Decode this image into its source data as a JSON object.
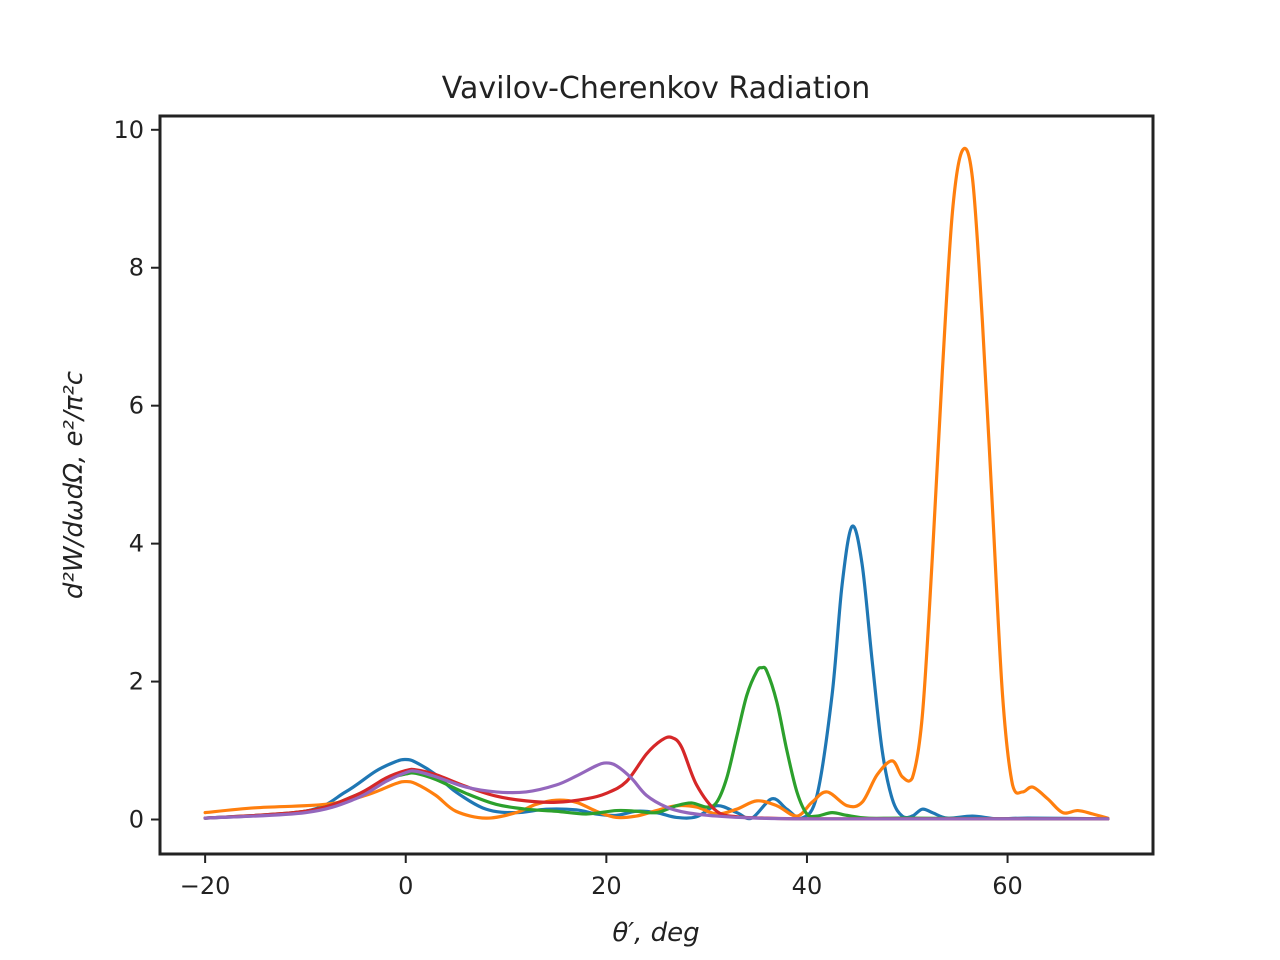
{
  "chart_data": {
    "type": "line",
    "title": "Vavilov-Cherenkov Radiation",
    "xlabel": "θ′, deg",
    "ylabel": "d²W/dωdΩ, e²/π²c",
    "xlim": [
      -24.5,
      74.5
    ],
    "ylim": [
      -0.5,
      10.2
    ],
    "xticks": [
      -20,
      0,
      20,
      40,
      60
    ],
    "xtick_labels": [
      "−20",
      "0",
      "20",
      "40",
      "60"
    ],
    "yticks": [
      0,
      2,
      4,
      6,
      8,
      10
    ],
    "ytick_labels": [
      "0",
      "2",
      "4",
      "6",
      "8",
      "10"
    ],
    "grid": false,
    "legend": "none",
    "series": [
      {
        "color": "#1f77b4",
        "x": [
          -20,
          -10,
          -6,
          -3,
          -1,
          0,
          1,
          3,
          5,
          8,
          11,
          14,
          17,
          19,
          21,
          23,
          25,
          27,
          29,
          31,
          33,
          34.5,
          36.5,
          38,
          39.5,
          41,
          42.5,
          43.5,
          44.5,
          45.5,
          46.5,
          47.5,
          48.5,
          49.5,
          50.5,
          51.5,
          52.5,
          54,
          56.5,
          59,
          62,
          70
        ],
        "y": [
          0.02,
          0.12,
          0.4,
          0.7,
          0.84,
          0.87,
          0.83,
          0.65,
          0.4,
          0.15,
          0.1,
          0.15,
          0.14,
          0.08,
          0.06,
          0.12,
          0.1,
          0.03,
          0.04,
          0.2,
          0.1,
          0.02,
          0.3,
          0.15,
          0.02,
          0.35,
          1.8,
          3.4,
          4.25,
          3.7,
          2.3,
          1.0,
          0.3,
          0.05,
          0.05,
          0.15,
          0.1,
          0.02,
          0.05,
          0.01,
          0.02,
          0.01
        ]
      },
      {
        "color": "#ff7f0e",
        "x": [
          -20,
          -15,
          -8,
          -4,
          -1,
          0,
          1,
          3,
          5,
          8,
          11,
          13,
          15,
          17,
          19,
          21,
          23,
          25,
          27,
          29,
          31,
          33,
          35,
          37,
          39,
          40.5,
          42,
          44,
          45.5,
          47,
          48.5,
          49.5,
          50.5,
          51.5,
          52.5,
          53.5,
          54.5,
          55.5,
          56.5,
          57.5,
          58.5,
          59.5,
          60.5,
          61.5,
          62.5,
          64,
          65.5,
          67,
          68.5,
          70
        ],
        "y": [
          0.1,
          0.17,
          0.22,
          0.35,
          0.52,
          0.55,
          0.52,
          0.35,
          0.12,
          0.02,
          0.1,
          0.22,
          0.28,
          0.25,
          0.12,
          0.03,
          0.05,
          0.13,
          0.2,
          0.18,
          0.08,
          0.15,
          0.27,
          0.2,
          0.05,
          0.25,
          0.4,
          0.2,
          0.25,
          0.65,
          0.85,
          0.62,
          0.6,
          1.5,
          3.8,
          6.5,
          8.8,
          9.7,
          9.3,
          7.2,
          4.5,
          1.8,
          0.5,
          0.4,
          0.47,
          0.3,
          0.1,
          0.13,
          0.08,
          0.02
        ]
      },
      {
        "color": "#2ca02c",
        "x": [
          -20,
          -10,
          -5,
          -2,
          0,
          1,
          3,
          6,
          9,
          12,
          15,
          18,
          21,
          23,
          25,
          27,
          28.5,
          30,
          31,
          32,
          33,
          34,
          35,
          35.5,
          36,
          37,
          38,
          39,
          40,
          41,
          42.5,
          44,
          46,
          50,
          60,
          70
        ],
        "y": [
          0.02,
          0.12,
          0.35,
          0.58,
          0.66,
          0.67,
          0.58,
          0.38,
          0.22,
          0.15,
          0.12,
          0.08,
          0.13,
          0.12,
          0.1,
          0.2,
          0.24,
          0.18,
          0.25,
          0.6,
          1.2,
          1.8,
          2.15,
          2.2,
          2.15,
          1.7,
          1.0,
          0.4,
          0.08,
          0.05,
          0.1,
          0.06,
          0.02,
          0.02,
          0.01,
          0.01
        ]
      },
      {
        "color": "#d62728",
        "x": [
          -20,
          -10,
          -5,
          -2,
          0,
          1,
          3,
          6,
          9,
          12,
          15,
          18,
          20,
          22,
          24,
          25.5,
          26.5,
          27.5,
          29,
          31,
          33,
          36,
          40,
          50,
          70
        ],
        "y": [
          0.02,
          0.12,
          0.35,
          0.6,
          0.71,
          0.72,
          0.65,
          0.48,
          0.34,
          0.27,
          0.25,
          0.3,
          0.38,
          0.55,
          0.95,
          1.15,
          1.19,
          1.05,
          0.5,
          0.12,
          0.04,
          0.02,
          0.01,
          0.01,
          0.01
        ]
      },
      {
        "color": "#9467bd",
        "x": [
          -20,
          -10,
          -5,
          -2,
          0,
          1,
          3,
          6,
          9,
          12,
          15,
          17,
          19,
          20,
          21,
          22.5,
          24,
          26,
          28,
          31,
          35,
          40,
          50,
          70
        ],
        "y": [
          0.02,
          0.1,
          0.3,
          0.55,
          0.68,
          0.7,
          0.62,
          0.47,
          0.4,
          0.4,
          0.5,
          0.63,
          0.78,
          0.82,
          0.78,
          0.6,
          0.35,
          0.18,
          0.1,
          0.05,
          0.02,
          0.01,
          0.01,
          0.01
        ]
      }
    ]
  }
}
